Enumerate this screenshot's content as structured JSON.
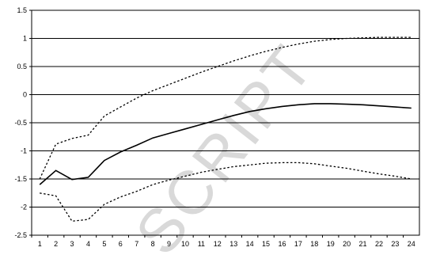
{
  "chart_data": {
    "type": "line",
    "title": "",
    "xlabel": "",
    "ylabel": "",
    "x": [
      1,
      2,
      3,
      4,
      5,
      6,
      7,
      8,
      9,
      10,
      11,
      12,
      13,
      14,
      15,
      16,
      17,
      18,
      19,
      20,
      21,
      22,
      23,
      24
    ],
    "ylim": [
      -2.5,
      1.5
    ],
    "yticks": [
      1.5,
      1,
      0.5,
      0,
      -0.5,
      -1,
      -1.5,
      -2,
      -2.5
    ],
    "ytick_labels": [
      "1.5",
      "1",
      "0.5",
      "0",
      "-0.5",
      "-1",
      "-1.5",
      "-2",
      "-2.5"
    ],
    "xtick_labels": [
      "1",
      "2",
      "3",
      "4",
      "5",
      "6",
      "7",
      "8",
      "9",
      "10",
      "11",
      "12",
      "13",
      "14",
      "15",
      "16",
      "17",
      "18",
      "19",
      "20",
      "21",
      "22",
      "23",
      "24"
    ],
    "grid": "horizontal",
    "legend": "none",
    "series": [
      {
        "style": "solid",
        "color": "#000000",
        "values": [
          -1.6,
          -1.35,
          -1.51,
          -1.47,
          -1.17,
          -1.02,
          -0.9,
          -0.77,
          -0.69,
          -0.61,
          -0.53,
          -0.45,
          -0.37,
          -0.3,
          -0.25,
          -0.21,
          -0.18,
          -0.16,
          -0.16,
          -0.17,
          -0.18,
          -0.2,
          -0.22,
          -0.24
        ]
      },
      {
        "style": "dotted",
        "color": "#000000",
        "values": [
          -1.5,
          -0.88,
          -0.78,
          -0.72,
          -0.38,
          -0.22,
          -0.06,
          0.07,
          0.18,
          0.29,
          0.4,
          0.5,
          0.6,
          0.69,
          0.77,
          0.84,
          0.9,
          0.95,
          0.98,
          1.0,
          1.01,
          1.02,
          1.02,
          1.02
        ]
      },
      {
        "style": "dotted",
        "color": "#000000",
        "values": [
          -1.75,
          -1.8,
          -2.25,
          -2.22,
          -1.95,
          -1.82,
          -1.72,
          -1.6,
          -1.52,
          -1.45,
          -1.38,
          -1.33,
          -1.28,
          -1.25,
          -1.22,
          -1.21,
          -1.21,
          -1.23,
          -1.27,
          -1.31,
          -1.36,
          -1.41,
          -1.45,
          -1.5
        ]
      }
    ],
    "watermark": "SCRIPT"
  }
}
